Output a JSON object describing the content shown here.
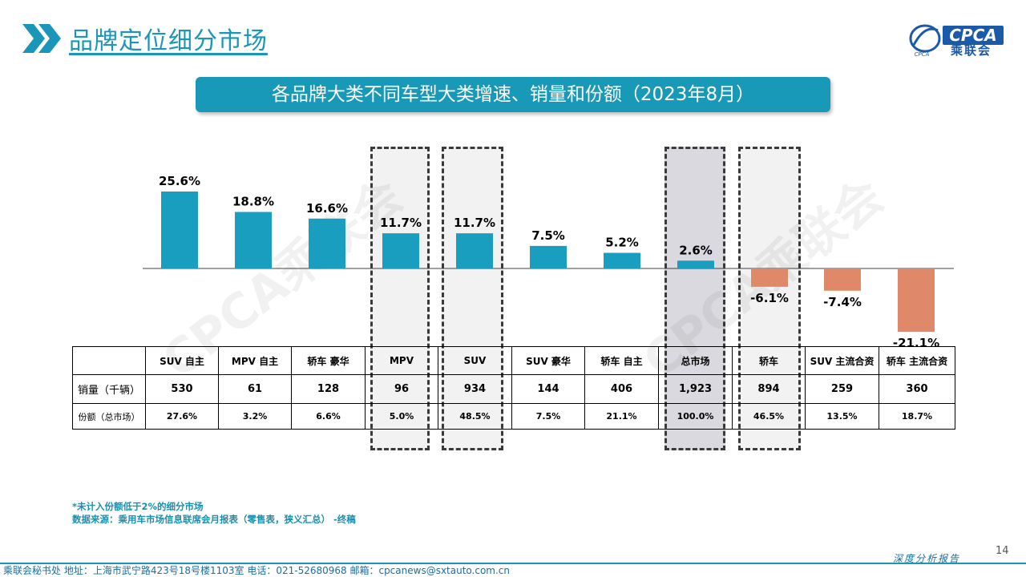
{
  "header": {
    "title": "品牌定位细分市场",
    "logo_text": "CPCA",
    "logo_cn": "乘联会",
    "logo_sub": "CPCA"
  },
  "banner": {
    "text": "各品牌大类不同车型大类增速、销量和份额（2023年8月）"
  },
  "watermark": {
    "text": "CPCA乘联会"
  },
  "chart_data": {
    "type": "bar",
    "title": "各品牌大类不同车型大类增速、销量和份额（2023年8月）",
    "categories": [
      "SUV 自主",
      "MPV 自主",
      "轿车 豪华",
      "MPV",
      "SUV",
      "SUV 豪华",
      "轿车 自主",
      "总市场",
      "轿车",
      "SUV 主流合资",
      "轿车 主流合资"
    ],
    "series": [
      {
        "values": [
          25.6,
          18.8,
          16.6,
          11.7,
          11.7,
          7.5,
          5.2,
          2.6,
          -6.1,
          -7.4,
          -21.1
        ]
      }
    ],
    "value_labels": [
      "25.6%",
      "18.8%",
      "16.6%",
      "11.7%",
      "11.7%",
      "7.5%",
      "5.2%",
      "2.6%",
      "-6.1%",
      "-7.4%",
      "-21.1%"
    ],
    "highlighted": [
      "MPV",
      "SUV",
      "总市场",
      "轿车"
    ],
    "colors": {
      "positive": "#1a9ebf",
      "negative": "#e0896a"
    },
    "ylim": [
      -22,
      27
    ],
    "grid": false,
    "table": {
      "rows": [
        {
          "label": "销量（千辆）",
          "values": [
            "530",
            "61",
            "128",
            "96",
            "934",
            "144",
            "406",
            "1,923",
            "894",
            "259",
            "360"
          ]
        },
        {
          "label": "份额（总市场）",
          "values": [
            "27.6%",
            "3.2%",
            "6.6%",
            "5.0%",
            "48.5%",
            "7.5%",
            "21.1%",
            "100.0%",
            "46.5%",
            "13.5%",
            "18.7%"
          ]
        }
      ]
    }
  },
  "notes": [
    "*未计入份额低于2%的细分市场",
    "数据来源：乘用车市场信息联席会月报表（零售表，狭义汇总）  -终稿"
  ],
  "page_number": "14",
  "footer": {
    "left": "乘联会秘书处    地址：上海市武宁路423号18号楼1103室    电话：021-52680968    邮箱：cpcanews@sxtauto.com.cn",
    "right": "深度分析报告"
  }
}
